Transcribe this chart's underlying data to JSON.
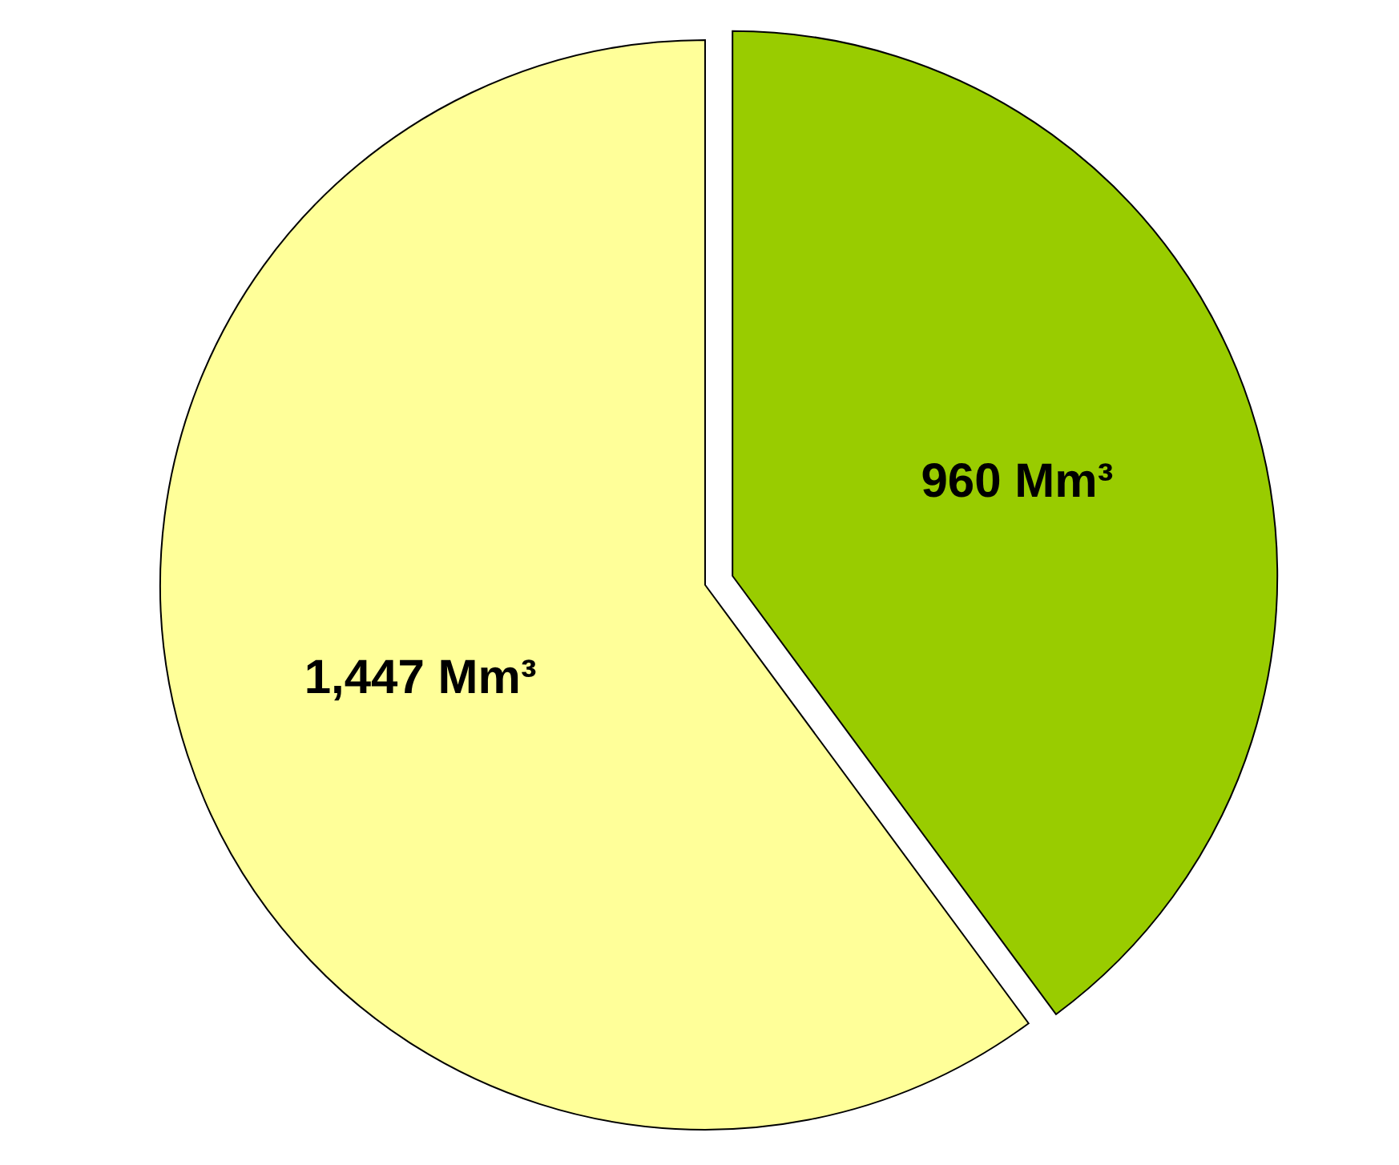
{
  "chart_data": {
    "type": "pie",
    "categories": [
      null,
      null
    ],
    "values": [
      960,
      1447
    ],
    "colors": [
      "#99cc00",
      "#ffff99"
    ],
    "value_labels": [
      "960 Mm³",
      "1,447 Mm³"
    ]
  }
}
